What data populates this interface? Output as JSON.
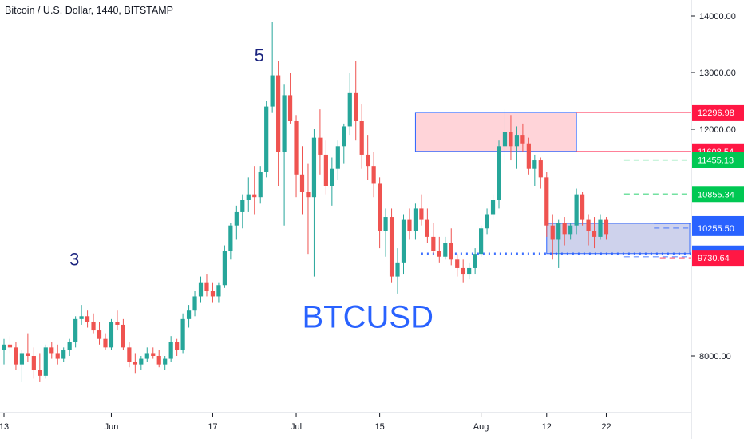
{
  "header": {
    "title": "Bitcoin / U.S. Dollar, 1440, BITSTAMP"
  },
  "colors": {
    "up": "#26a69a",
    "down": "#ef5350",
    "blue": "#2962ff",
    "green": "#00c853",
    "red": "#ff1744",
    "zone_red": "#ffcdd2",
    "zone_blue": "#c5cae9"
  },
  "chart_data": {
    "type": "candlestick",
    "title": "Bitcoin / U.S. Dollar, 1440, BITSTAMP",
    "ylim": [
      7600,
      14300
    ],
    "y_ticks": [
      {
        "v": 14000,
        "label": "14000.00"
      },
      {
        "v": 13000,
        "label": "13000.00"
      },
      {
        "v": 12000,
        "label": "12000.00"
      },
      {
        "v": 8000,
        "label": "8000.00"
      }
    ],
    "x_ticks": [
      {
        "i": 0,
        "label": "13"
      },
      {
        "i": 18,
        "label": "Jun"
      },
      {
        "i": 35,
        "label": "17"
      },
      {
        "i": 49,
        "label": "Jul"
      },
      {
        "i": 63,
        "label": "15"
      },
      {
        "i": 80,
        "label": "Aug"
      },
      {
        "i": 91,
        "label": "12"
      },
      {
        "i": 101,
        "label": "22"
      }
    ],
    "candles": [
      [
        8100,
        8300,
        7850,
        8200
      ],
      [
        8200,
        8350,
        8050,
        8150
      ],
      [
        8150,
        8250,
        7750,
        7850
      ],
      [
        7850,
        8100,
        7550,
        8050
      ],
      [
        8050,
        8400,
        7900,
        8000
      ],
      [
        8000,
        8150,
        7600,
        7750
      ],
      [
        7750,
        8050,
        7550,
        7650
      ],
      [
        7650,
        8200,
        7600,
        8150
      ],
      [
        8150,
        8250,
        7950,
        8050
      ],
      [
        8050,
        8200,
        7850,
        7950
      ],
      [
        7950,
        8150,
        7900,
        8100
      ],
      [
        8100,
        8300,
        8000,
        8250
      ],
      [
        8250,
        8700,
        8150,
        8650
      ],
      [
        8650,
        8900,
        8550,
        8700
      ],
      [
        8700,
        8800,
        8500,
        8600
      ],
      [
        8600,
        8750,
        8400,
        8450
      ],
      [
        8450,
        8600,
        8200,
        8300
      ],
      [
        8300,
        8400,
        8100,
        8150
      ],
      [
        8150,
        8650,
        8100,
        8600
      ],
      [
        8600,
        8800,
        8450,
        8550
      ],
      [
        8550,
        8650,
        8100,
        8150
      ],
      [
        8150,
        8250,
        7800,
        7900
      ],
      [
        7900,
        8050,
        7700,
        7850
      ],
      [
        7850,
        8000,
        7750,
        7950
      ],
      [
        7950,
        8150,
        7900,
        8050
      ],
      [
        8050,
        8150,
        7950,
        8000
      ],
      [
        8000,
        8100,
        7800,
        7850
      ],
      [
        7850,
        8000,
        7750,
        7950
      ],
      [
        7950,
        8350,
        7900,
        8250
      ],
      [
        8250,
        8300,
        8000,
        8100
      ],
      [
        8100,
        8750,
        8050,
        8650
      ],
      [
        8650,
        8900,
        8500,
        8800
      ],
      [
        8800,
        9150,
        8700,
        9050
      ],
      [
        9050,
        9400,
        8950,
        9300
      ],
      [
        9300,
        9450,
        9050,
        9150
      ],
      [
        9150,
        9300,
        8950,
        9050
      ],
      [
        9050,
        9300,
        8950,
        9250
      ],
      [
        9250,
        9950,
        9200,
        9850
      ],
      [
        9850,
        10350,
        9700,
        10300
      ],
      [
        10300,
        10650,
        10050,
        10550
      ],
      [
        10550,
        10850,
        10250,
        10750
      ],
      [
        10750,
        11150,
        10550,
        10850
      ],
      [
        10850,
        11350,
        10500,
        10800
      ],
      [
        10800,
        11350,
        10700,
        11250
      ],
      [
        11250,
        12500,
        11150,
        12400
      ],
      [
        12400,
        13900,
        12300,
        12950
      ],
      [
        12950,
        13200,
        11000,
        11600
      ],
      [
        11600,
        12800,
        10300,
        12600
      ],
      [
        12600,
        13000,
        12100,
        12150
      ],
      [
        12150,
        12250,
        10800,
        11200
      ],
      [
        11200,
        11700,
        10500,
        10900
      ],
      [
        10900,
        11400,
        9800,
        10800
      ],
      [
        10800,
        12000,
        9400,
        11850
      ],
      [
        11850,
        12350,
        11200,
        11550
      ],
      [
        11550,
        11800,
        10850,
        11000
      ],
      [
        11000,
        11500,
        10650,
        11300
      ],
      [
        11300,
        11800,
        11100,
        11700
      ],
      [
        11700,
        12100,
        11400,
        12050
      ],
      [
        12050,
        13000,
        11900,
        12650
      ],
      [
        12650,
        13200,
        11800,
        12150
      ],
      [
        12150,
        12450,
        11300,
        11550
      ],
      [
        11550,
        11900,
        11100,
        11350
      ],
      [
        11350,
        11600,
        10800,
        11050
      ],
      [
        11050,
        11150,
        9900,
        10200
      ],
      [
        10200,
        10600,
        9750,
        10450
      ],
      [
        10450,
        10600,
        9300,
        9400
      ],
      [
        9400,
        9900,
        9100,
        9650
      ],
      [
        9650,
        10500,
        9450,
        10400
      ],
      [
        10400,
        10600,
        10050,
        10200
      ],
      [
        10200,
        10700,
        10050,
        10600
      ],
      [
        10600,
        10850,
        10300,
        10400
      ],
      [
        10400,
        10600,
        10000,
        10100
      ],
      [
        10100,
        10350,
        9800,
        9850
      ],
      [
        9850,
        10100,
        9650,
        9750
      ],
      [
        9750,
        10100,
        9700,
        10000
      ],
      [
        10000,
        10250,
        9600,
        9700
      ],
      [
        9700,
        9800,
        9400,
        9550
      ],
      [
        9550,
        9700,
        9300,
        9450
      ],
      [
        9450,
        9650,
        9350,
        9550
      ],
      [
        9550,
        9900,
        9450,
        9800
      ],
      [
        9800,
        10300,
        9750,
        10250
      ],
      [
        10250,
        10600,
        10150,
        10500
      ],
      [
        10500,
        10850,
        10400,
        10750
      ],
      [
        10750,
        11800,
        10600,
        11700
      ],
      [
        11700,
        12350,
        11400,
        11950
      ],
      [
        11950,
        12250,
        11450,
        11700
      ],
      [
        11700,
        12050,
        11300,
        11900
      ],
      [
        11900,
        12100,
        11600,
        11750
      ],
      [
        11750,
        11850,
        11200,
        11300
      ],
      [
        11300,
        11550,
        11000,
        11450
      ],
      [
        11450,
        11500,
        10950,
        11150
      ],
      [
        11150,
        11250,
        10100,
        10300
      ],
      [
        10300,
        10500,
        9700,
        10050
      ],
      [
        10050,
        10400,
        9550,
        10350
      ],
      [
        10350,
        10450,
        9950,
        10150
      ],
      [
        10150,
        10350,
        10050,
        10300
      ],
      [
        10300,
        10950,
        10150,
        10850
      ],
      [
        10850,
        10900,
        10300,
        10400
      ],
      [
        10400,
        10500,
        9950,
        10200
      ],
      [
        10200,
        10450,
        9900,
        10100
      ],
      [
        10100,
        10500,
        10050,
        10400
      ],
      [
        10400,
        10450,
        10050,
        10150
      ]
    ],
    "zones": [
      {
        "start": 69,
        "end": 96,
        "y1": 12296.98,
        "y2": 11608.54,
        "color": "#ffcdd2",
        "border": "#2962ff"
      },
      {
        "start": 91,
        "end": 115,
        "y1": 10338.55,
        "y2": 9806.08,
        "color": "#c5cae9",
        "border": "#2962ff"
      }
    ],
    "levels": [
      {
        "v": 12296.98,
        "label": "12296.98",
        "color": "#ff1744",
        "line": "solid",
        "from": 96
      },
      {
        "v": 11608.54,
        "label": "11608.54",
        "color": "#ff1744",
        "line": "solid",
        "from": 96
      },
      {
        "v": 11455.13,
        "label": "11455.13",
        "color": "#00c853",
        "line": "dashed",
        "from": 104
      },
      {
        "v": 10855.34,
        "label": "10855.34",
        "color": "#00c853",
        "line": "dashed",
        "from": 104
      },
      {
        "v": 10338.55,
        "label": "10338.55",
        "color": "#2962ff",
        "line": "solid",
        "from": 109
      },
      {
        "v": 10255.5,
        "label": "10255.50",
        "color": "#2962ff",
        "line": "dashed",
        "from": 109
      },
      {
        "v": 9806.08,
        "label": "9806.08",
        "color": "#2962ff",
        "line": "dotted",
        "from": 70
      },
      {
        "v": 9750.8,
        "label": "9750.80",
        "color": "#2962ff",
        "line": "dashed",
        "from": 104
      },
      {
        "v": 9730.64,
        "label": "9730.64",
        "color": "#ff1744",
        "line": "dashed",
        "from": 110
      }
    ],
    "annotations": [
      {
        "text": "5",
        "i": 42,
        "v": 13200,
        "color": "#1a237e",
        "size": 22
      },
      {
        "text": "3",
        "i": 11,
        "v": 9600,
        "color": "#1a237e",
        "size": 22
      },
      {
        "text": "BTCUSD",
        "i": 50,
        "v": 8500,
        "color": "#2962ff",
        "size": 40
      }
    ]
  }
}
